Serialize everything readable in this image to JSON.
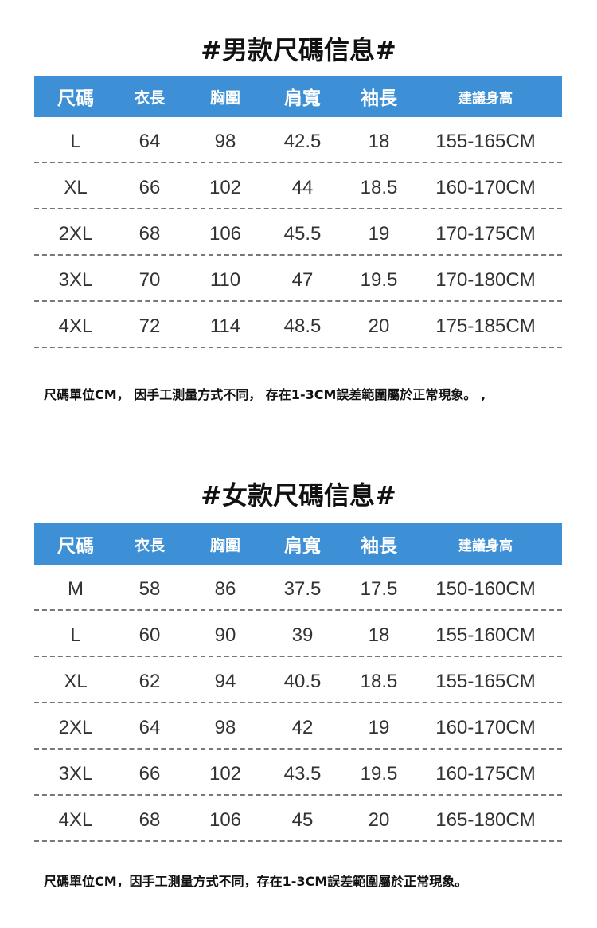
{
  "colors": {
    "header_bg": "#3d8fd6"
  },
  "men": {
    "title": "#男款尺碼信息#",
    "headers": [
      "尺碼",
      "衣長",
      "胸圍",
      "肩寬",
      "袖長",
      "建議身高"
    ],
    "rows": [
      [
        "L",
        "64",
        "98",
        "42.5",
        "18",
        "155-165CM"
      ],
      [
        "XL",
        "66",
        "102",
        "44",
        "18.5",
        "160-170CM"
      ],
      [
        "2XL",
        "68",
        "106",
        "45.5",
        "19",
        "170-175CM"
      ],
      [
        "3XL",
        "70",
        "110",
        "47",
        "19.5",
        "170-180CM"
      ],
      [
        "4XL",
        "72",
        "114",
        "48.5",
        "20",
        "175-185CM"
      ]
    ],
    "note": "尺碼單位CM，  因手工測量方式不同，  存在1-3CM誤差範圍屬於正常現象。 ,"
  },
  "women": {
    "title": "#女款尺碼信息#",
    "headers": [
      "尺碼",
      "衣長",
      "胸圍",
      "肩寬",
      "袖長",
      "建議身高"
    ],
    "rows": [
      [
        "M",
        "58",
        "86",
        "37.5",
        "17.5",
        "150-160CM"
      ],
      [
        "L",
        "60",
        "90",
        "39",
        "18",
        "155-160CM"
      ],
      [
        "XL",
        "62",
        "94",
        "40.5",
        "18.5",
        "155-165CM"
      ],
      [
        "2XL",
        "64",
        "98",
        "42",
        "19",
        "160-170CM"
      ],
      [
        "3XL",
        "66",
        "102",
        "43.5",
        "19.5",
        "160-175CM"
      ],
      [
        "4XL",
        "68",
        "106",
        "45",
        "20",
        "165-180CM"
      ]
    ],
    "note": "尺碼單位CM，因手工測量方式不同，存在1-3CM誤差範圍屬於正常現象。"
  }
}
